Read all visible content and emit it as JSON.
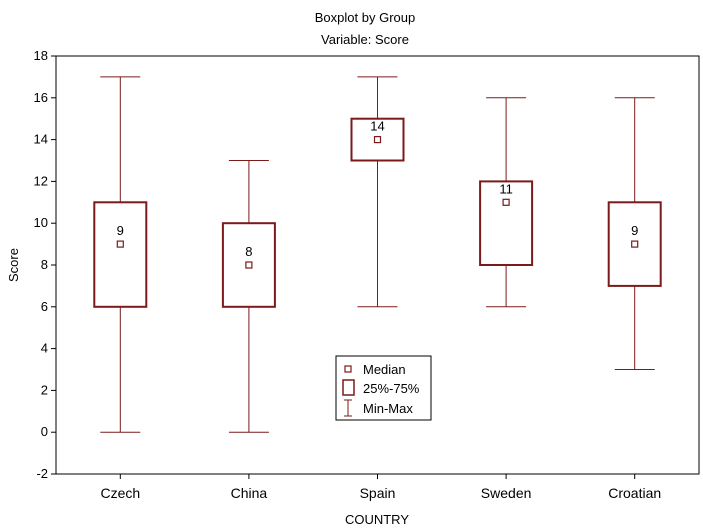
{
  "chart_data": {
    "type": "boxplot",
    "title": "Boxplot by Group",
    "subtitle": "Variable: Score",
    "xlabel": "COUNTRY",
    "ylabel": "Score",
    "ylim": [
      -2,
      18
    ],
    "yticks": [
      -2,
      0,
      2,
      4,
      6,
      8,
      10,
      12,
      14,
      16,
      18
    ],
    "grid": false,
    "legend_position": "bottom-center",
    "legend": [
      "Median",
      "25%-75%",
      "Min-Max"
    ],
    "categories": [
      "Czech",
      "China",
      "Spain",
      "Sweden",
      "Croatian"
    ],
    "stats": [
      {
        "min": 0,
        "q1": 6,
        "median": 9,
        "q3": 11,
        "max": 17,
        "label": "9"
      },
      {
        "min": 0,
        "q1": 6,
        "median": 8,
        "q3": 10,
        "max": 13,
        "label": "8"
      },
      {
        "min": 6,
        "q1": 13,
        "median": 14,
        "q3": 15,
        "max": 17,
        "label": "14"
      },
      {
        "min": 6,
        "q1": 8,
        "median": 11,
        "q3": 12,
        "max": 16,
        "label": "11"
      },
      {
        "min": 3,
        "q1": 7,
        "median": 9,
        "q3": 11,
        "max": 16,
        "label": "9"
      }
    ],
    "color": "#7b1a1a"
  }
}
